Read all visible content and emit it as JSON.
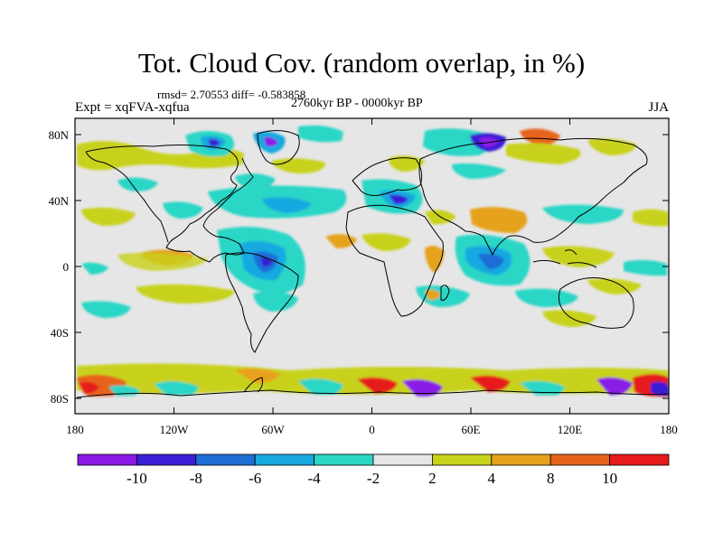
{
  "title": "Tot. Cloud Cov. (random overlap, in %)",
  "stats": "rmsd= 2.70553 diff= -0.583858",
  "expt": "Expt = xqFVA-xqfua",
  "period": "2760kyr BP - 0000kyr BP",
  "season": "JJA",
  "lat_ticks": [
    "80N",
    "40N",
    "0",
    "40S",
    "80S"
  ],
  "lon_ticks": [
    "180",
    "120W",
    "60W",
    "0",
    "60E",
    "120E",
    "180"
  ],
  "colorbar": {
    "colors": [
      "#8a1ae6",
      "#3a1fd6",
      "#1f6ed6",
      "#17a8e0",
      "#2ad6c6",
      "#e6e6e6",
      "#c8d21a",
      "#e6a21a",
      "#e6641a",
      "#e61a1a"
    ],
    "labels": [
      "-10",
      "-8",
      "-6",
      "-4",
      "-2",
      "2",
      "4",
      "8",
      "10"
    ]
  }
}
